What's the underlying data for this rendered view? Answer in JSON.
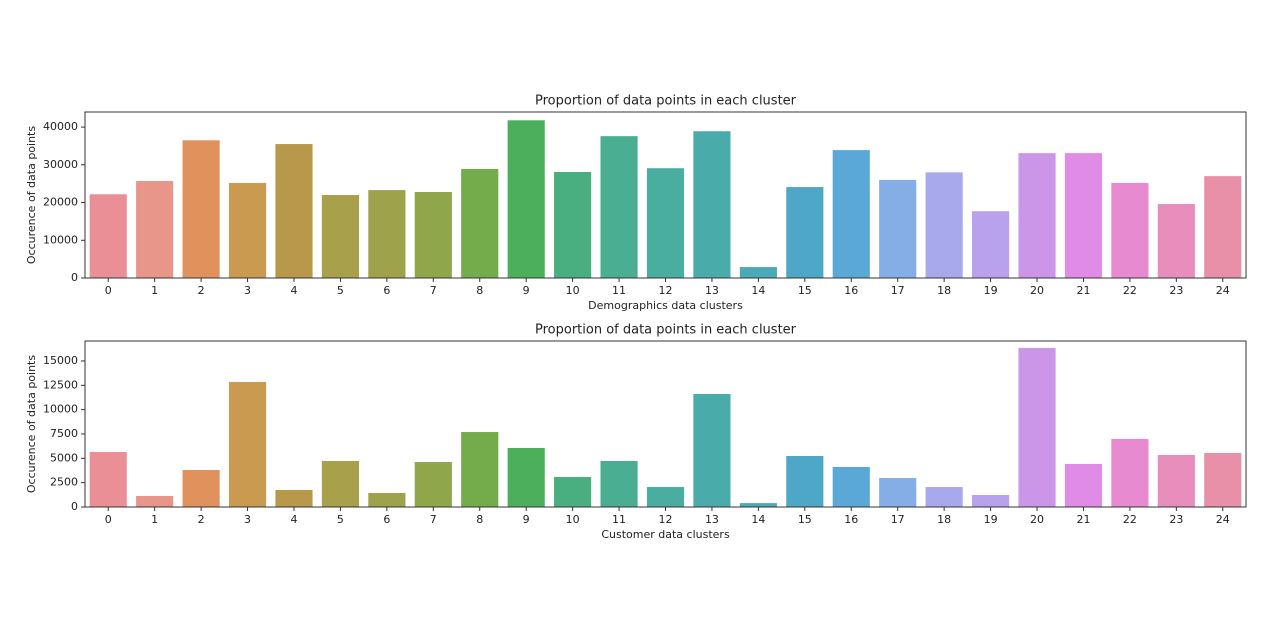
{
  "chart_data": [
    {
      "type": "bar",
      "title": "Proportion of data points in each cluster",
      "x_label": "Demographics data clusters",
      "y_label": "Occurence of data points",
      "categories": [
        "0",
        "1",
        "2",
        "3",
        "4",
        "5",
        "6",
        "7",
        "8",
        "9",
        "10",
        "11",
        "12",
        "13",
        "14",
        "15",
        "16",
        "17",
        "18",
        "19",
        "20",
        "21",
        "22",
        "23",
        "24"
      ],
      "values": [
        22200,
        25700,
        36500,
        25200,
        35500,
        22000,
        23300,
        22800,
        28900,
        41800,
        28100,
        37600,
        29100,
        38900,
        2900,
        24100,
        33900,
        26000,
        28000,
        17700,
        33100,
        33100,
        25200,
        19600,
        27000
      ],
      "colors": [
        "#ea8f96",
        "#e8968a",
        "#e0915c",
        "#c99a4f",
        "#b8984a",
        "#a9a04b",
        "#9da24b",
        "#8fa64b",
        "#74ab4b",
        "#4caf5c",
        "#4aaf80",
        "#4aae93",
        "#49ad9f",
        "#4aabab",
        "#4ca9b8",
        "#4ea7c6",
        "#59a8d8",
        "#85ade6",
        "#a7a9ec",
        "#b8a1ed",
        "#cc96e8",
        "#e08be6",
        "#e88ad0",
        "#e88ebd",
        "#e990a9"
      ],
      "ylim": [
        0,
        44000
      ],
      "yticks": [
        0,
        10000,
        20000,
        30000,
        40000
      ]
    },
    {
      "type": "bar",
      "title": "Proportion of data points in each cluster",
      "x_label": "Customer data clusters",
      "y_label": "Occurence of data points",
      "categories": [
        "0",
        "1",
        "2",
        "3",
        "4",
        "5",
        "6",
        "7",
        "8",
        "9",
        "10",
        "11",
        "12",
        "13",
        "14",
        "15",
        "16",
        "17",
        "18",
        "19",
        "20",
        "21",
        "22",
        "23",
        "24"
      ],
      "values": [
        5650,
        1130,
        3800,
        12840,
        1750,
        4730,
        1440,
        4620,
        7700,
        6060,
        3080,
        4730,
        2050,
        11610,
        400,
        5240,
        4110,
        2980,
        2050,
        1230,
        16340,
        4420,
        6990,
        5340,
        5550
      ],
      "colors": [
        "#ea8f96",
        "#e8968a",
        "#e0915c",
        "#c99a4f",
        "#b8984a",
        "#a9a04b",
        "#9da24b",
        "#8fa64b",
        "#74ab4b",
        "#4caf5c",
        "#4aaf80",
        "#4aae93",
        "#49ad9f",
        "#4aabab",
        "#4ca9b8",
        "#4ea7c6",
        "#59a8d8",
        "#85ade6",
        "#a7a9ec",
        "#b8a1ed",
        "#cc96e8",
        "#e08be6",
        "#e88ad0",
        "#e88ebd",
        "#e990a9"
      ],
      "ylim": [
        0,
        17050
      ],
      "yticks": [
        0,
        2500,
        5000,
        7500,
        10000,
        12500,
        15000
      ]
    }
  ]
}
